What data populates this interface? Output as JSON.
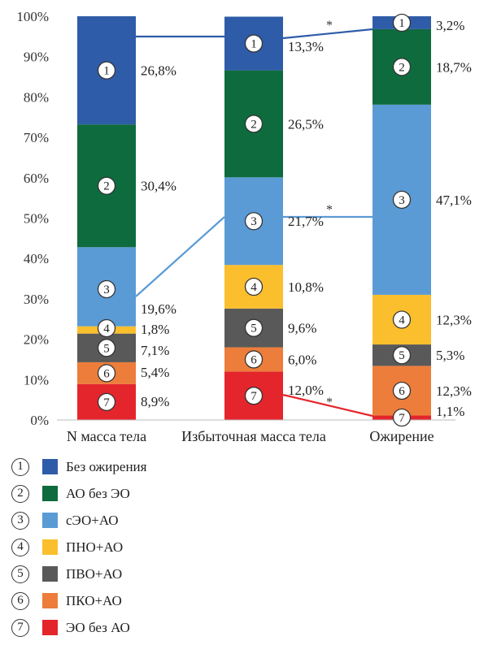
{
  "chart_data": {
    "type": "bar",
    "stacked": true,
    "categories": [
      "N масса тела",
      "Избыточная масса тела",
      "Ожирение"
    ],
    "ylim": [
      0,
      100
    ],
    "yticks": [
      "0%",
      "10%",
      "20%",
      "30%",
      "40%",
      "50%",
      "60%",
      "70%",
      "80%",
      "90%",
      "100%"
    ],
    "series": [
      {
        "num": "1",
        "name": "Без ожирения",
        "color": "#2f5ca8",
        "values": [
          26.8,
          13.3,
          3.2
        ],
        "labels": [
          "26,8%",
          "13,3%",
          "3,2%"
        ]
      },
      {
        "num": "2",
        "name": "АО без ЭО",
        "color": "#0e6b3d",
        "values": [
          30.4,
          26.5,
          18.7
        ],
        "labels": [
          "30,4%",
          "26,5%",
          "18,7%"
        ]
      },
      {
        "num": "3",
        "name": "сЭО+АО",
        "color": "#5b9bd5",
        "values": [
          19.6,
          21.7,
          47.1
        ],
        "labels": [
          "19,6%",
          "21,7%",
          "47,1%"
        ]
      },
      {
        "num": "4",
        "name": "ПНО+АО",
        "color": "#fbbf2d",
        "values": [
          1.8,
          10.8,
          12.3
        ],
        "labels": [
          "1,8%",
          "10,8%",
          "12,3%"
        ]
      },
      {
        "num": "5",
        "name": "ПВО+АО",
        "color": "#595959",
        "values": [
          7.1,
          9.6,
          5.3
        ],
        "labels": [
          "7,1%",
          "9,6%",
          "5,3%"
        ]
      },
      {
        "num": "6",
        "name": "ПКО+АО",
        "color": "#ed7d3a",
        "values": [
          5.4,
          6.0,
          12.3
        ],
        "labels": [
          "5,4%",
          "6,0%",
          "12,3%"
        ]
      },
      {
        "num": "7",
        "name": "ЭО без АО",
        "color": "#e4252c",
        "values": [
          8.9,
          12.0,
          1.1
        ],
        "labels": [
          "8,9%",
          "12,0%",
          "1,1%"
        ]
      }
    ],
    "significance_marker": "*",
    "connectors": [
      {
        "series": "1",
        "color": "#2f5ca8"
      },
      {
        "series": "3",
        "color": "#5b9bd5"
      },
      {
        "series": "7",
        "color": "#e4252c"
      }
    ]
  }
}
